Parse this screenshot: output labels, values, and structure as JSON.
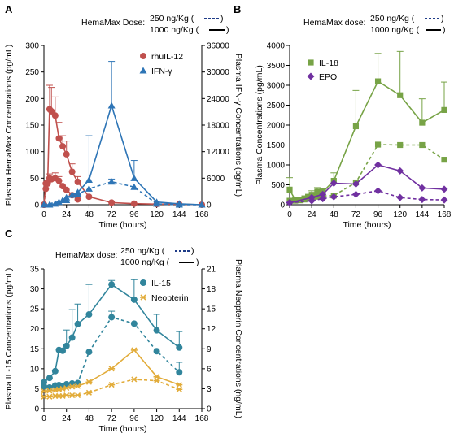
{
  "figure": {
    "panel_letters": [
      "A",
      "B",
      "C"
    ]
  },
  "dose_legend": {
    "A": {
      "title": "HemaMax Dose:",
      "low": "250 ng/Kg (",
      "low_close": ")",
      "high": "1000 ng/Kg (",
      "high_close": ")"
    },
    "B": {
      "title": "HemaMax dose:",
      "low": "250 ng/Kg (",
      "low_close": ")",
      "high": "1000 ng/Kg (",
      "high_close": ")"
    },
    "C": {
      "title": "HemaMax dose:",
      "low": "250 ng/Kg (",
      "low_close": ")",
      "high": "1000 ng/Kg (",
      "high_close": ")"
    }
  },
  "chart_data": [
    {
      "panel": "A",
      "type": "line",
      "xlabel": "Time (hours)",
      "ylabel": "Plasma HemaMax Concentrations (pg/mL)",
      "y2label": "Plasma IFN-γ Concentrations (pg/mL)",
      "xlim": [
        0,
        168
      ],
      "xticks": [
        "0",
        "24",
        "48",
        "72",
        "96",
        "120",
        "144",
        "168"
      ],
      "ylim": [
        0,
        300
      ],
      "yticks": [
        "0",
        "50",
        "100",
        "150",
        "200",
        "250",
        "300"
      ],
      "y2lim": [
        0,
        36000
      ],
      "y2ticks": [
        "0",
        "6000",
        "12000",
        "18000",
        "24000",
        "30000",
        "36000"
      ],
      "series": [
        {
          "name": "rhuIL-12",
          "axis": "left",
          "dose": "1000 ng/Kg",
          "color": "#c0504d",
          "marker": "circle",
          "dashed": false,
          "x": [
            0,
            2,
            4,
            6,
            8,
            12,
            16,
            20,
            24,
            30,
            36,
            48,
            72,
            96,
            120,
            144,
            168
          ],
          "y": [
            0,
            40,
            42,
            180,
            176,
            168,
            125,
            110,
            95,
            62,
            43,
            15,
            4,
            2,
            1,
            1,
            0
          ],
          "err": [
            0,
            0,
            0,
            45,
            45,
            35,
            30,
            20,
            25,
            15,
            10,
            0,
            0,
            0,
            0,
            0,
            0
          ]
        },
        {
          "name": "",
          "axis": "left",
          "dose": "250 ng/Kg",
          "color": "#c0504d",
          "marker": "circle",
          "dashed": true,
          "x": [
            0,
            2,
            4,
            6,
            8,
            12,
            16,
            20,
            24,
            30,
            36
          ],
          "y": [
            0,
            30,
            40,
            50,
            48,
            50,
            45,
            35,
            28,
            18,
            10
          ],
          "err": [
            0,
            0,
            0,
            8,
            5,
            10,
            8,
            0,
            0,
            0,
            0
          ]
        },
        {
          "name": "IFN-γ",
          "axis": "right",
          "dose": "1000 ng/Kg",
          "color": "#2e75b6",
          "marker": "triangle",
          "dashed": false,
          "x": [
            0,
            6,
            12,
            16,
            20,
            24,
            30,
            36,
            48,
            72,
            96,
            120,
            144,
            168
          ],
          "y": [
            0,
            0,
            200,
            600,
            1000,
            1600,
            2200,
            2800,
            5600,
            22400,
            6000,
            600,
            200,
            0
          ],
          "err": [
            0,
            0,
            0,
            0,
            0,
            0,
            0,
            0,
            10000,
            10000,
            4000,
            0,
            0,
            0
          ]
        },
        {
          "name": "",
          "axis": "right",
          "dose": "250 ng/Kg",
          "color": "#2e75b6",
          "marker": "triangle",
          "dashed": true,
          "x": [
            0,
            24,
            36,
            48,
            72,
            96,
            120,
            144,
            168
          ],
          "y": [
            0,
            1000,
            2400,
            3600,
            5200,
            4000,
            200,
            0,
            0
          ],
          "err": [
            0,
            0,
            0,
            0,
            600,
            0,
            0,
            0,
            0
          ]
        }
      ]
    },
    {
      "panel": "B",
      "type": "line",
      "xlabel": "Time (hours)",
      "ylabel": "Plasma Concentrations (pg/mL)",
      "xlim": [
        0,
        168
      ],
      "xticks": [
        "0",
        "24",
        "48",
        "72",
        "96",
        "120",
        "144",
        "168"
      ],
      "ylim": [
        0,
        4000
      ],
      "yticks": [
        "0",
        "500",
        "1000",
        "1500",
        "2000",
        "2500",
        "3000",
        "3500",
        "4000"
      ],
      "series": [
        {
          "name": "IL-18",
          "dose": "1000 ng/Kg",
          "color": "#77a346",
          "marker": "square",
          "dashed": false,
          "x": [
            0,
            6,
            12,
            16,
            20,
            24,
            30,
            36,
            48,
            72,
            96,
            120,
            144,
            168
          ],
          "y": [
            380,
            120,
            130,
            160,
            200,
            250,
            330,
            320,
            600,
            1970,
            3100,
            2750,
            2060,
            2380
          ],
          "err": [
            300,
            0,
            0,
            0,
            0,
            100,
            100,
            80,
            200,
            900,
            700,
            1100,
            600,
            700
          ]
        },
        {
          "name": "",
          "dose": "250 ng/Kg",
          "color": "#77a346",
          "marker": "square",
          "dashed": true,
          "x": [
            0,
            6,
            12,
            16,
            20,
            24,
            30,
            36,
            48,
            72,
            96,
            120,
            144,
            168
          ],
          "y": [
            100,
            100,
            110,
            130,
            150,
            160,
            200,
            220,
            230,
            560,
            1510,
            1500,
            1500,
            1130
          ],
          "err": [
            0,
            0,
            0,
            0,
            0,
            0,
            0,
            0,
            0,
            0,
            0,
            0,
            0,
            0
          ]
        },
        {
          "name": "EPO",
          "dose": "1000 ng/Kg",
          "color": "#7030a0",
          "marker": "diamond",
          "dashed": false,
          "x": [
            0,
            24,
            36,
            48,
            72,
            96,
            120,
            144,
            168
          ],
          "y": [
            50,
            180,
            260,
            540,
            520,
            1000,
            850,
            420,
            390
          ],
          "err": [
            0,
            0,
            0,
            0,
            0,
            0,
            0,
            0,
            0
          ]
        },
        {
          "name": "",
          "dose": "250 ng/Kg",
          "color": "#7030a0",
          "marker": "diamond",
          "dashed": true,
          "x": [
            0,
            24,
            36,
            48,
            72,
            96,
            120,
            144,
            168
          ],
          "y": [
            50,
            100,
            150,
            200,
            260,
            350,
            180,
            130,
            120
          ],
          "err": [
            0,
            0,
            0,
            0,
            0,
            0,
            0,
            0,
            0
          ]
        }
      ]
    },
    {
      "panel": "C",
      "type": "line",
      "xlabel": "Time (hours)",
      "ylabel": "Plasma  IL-15 Concentrations (pg/mL)",
      "y2label": "Plasma Neopterin Concentrations (ng/mL)",
      "xlim": [
        0,
        168
      ],
      "xticks": [
        "0",
        "24",
        "48",
        "72",
        "96",
        "120",
        "144",
        "168"
      ],
      "ylim": [
        0,
        35
      ],
      "yticks": [
        "0",
        "5",
        "10",
        "15",
        "20",
        "25",
        "30",
        "35"
      ],
      "y2lim": [
        0,
        21
      ],
      "y2ticks": [
        "0",
        "3",
        "6",
        "9",
        "12",
        "15",
        "18",
        "21"
      ],
      "series": [
        {
          "name": "IL-15",
          "axis": "left",
          "dose": "1000 ng/Kg",
          "color": "#31859c",
          "marker": "circle",
          "dashed": false,
          "x": [
            0,
            6,
            12,
            16,
            20,
            24,
            30,
            36,
            48,
            72,
            96,
            120,
            144
          ],
          "y": [
            6.6,
            7.7,
            9.4,
            14.7,
            14.5,
            15.7,
            17.8,
            21.2,
            23.6,
            31.1,
            27.3,
            19.6,
            15.3
          ],
          "err": [
            0,
            0,
            0,
            0,
            0,
            4.0,
            7.0,
            5.0,
            7.5,
            1.0,
            5.0,
            4.0,
            4.0
          ]
        },
        {
          "name": "",
          "axis": "left",
          "dose": "250 ng/Kg",
          "color": "#31859c",
          "marker": "circle",
          "dashed": true,
          "x": [
            0,
            6,
            12,
            16,
            20,
            24,
            30,
            36,
            48,
            72,
            96,
            120,
            144
          ],
          "y": [
            5.6,
            5.3,
            5.8,
            5.9,
            5.6,
            6.1,
            6.3,
            6.4,
            14.2,
            22.9,
            21.3,
            14.4,
            9.1
          ],
          "err": [
            0,
            0,
            0,
            0,
            0,
            0,
            0,
            0,
            0,
            1.5,
            0,
            0,
            2.5
          ]
        },
        {
          "name": "Neopterin",
          "axis": "right",
          "dose": "1000 ng/Kg",
          "color": "#e2ac3a",
          "marker": "star",
          "dashed": false,
          "x": [
            0,
            6,
            12,
            16,
            20,
            24,
            30,
            36,
            48,
            72,
            96,
            120,
            144
          ],
          "y": [
            2.6,
            2.7,
            2.8,
            2.9,
            3.0,
            3.1,
            3.3,
            3.4,
            4.0,
            6.0,
            8.8,
            4.8,
            3.6
          ],
          "err": [
            0,
            0,
            0,
            0,
            0,
            0,
            0,
            0,
            0,
            0,
            0,
            0,
            0
          ]
        },
        {
          "name": "",
          "axis": "right",
          "dose": "250 ng/Kg",
          "color": "#e2ac3a",
          "marker": "star",
          "dashed": true,
          "x": [
            0,
            6,
            12,
            16,
            20,
            24,
            30,
            36,
            48,
            72,
            96,
            120,
            144
          ],
          "y": [
            1.8,
            1.8,
            1.9,
            1.9,
            1.9,
            2.0,
            2.0,
            2.0,
            2.4,
            3.6,
            4.4,
            4.2,
            2.9
          ],
          "err": [
            0,
            0,
            0,
            0,
            0,
            0,
            0,
            0,
            0,
            0,
            0,
            0,
            0
          ]
        }
      ]
    }
  ]
}
